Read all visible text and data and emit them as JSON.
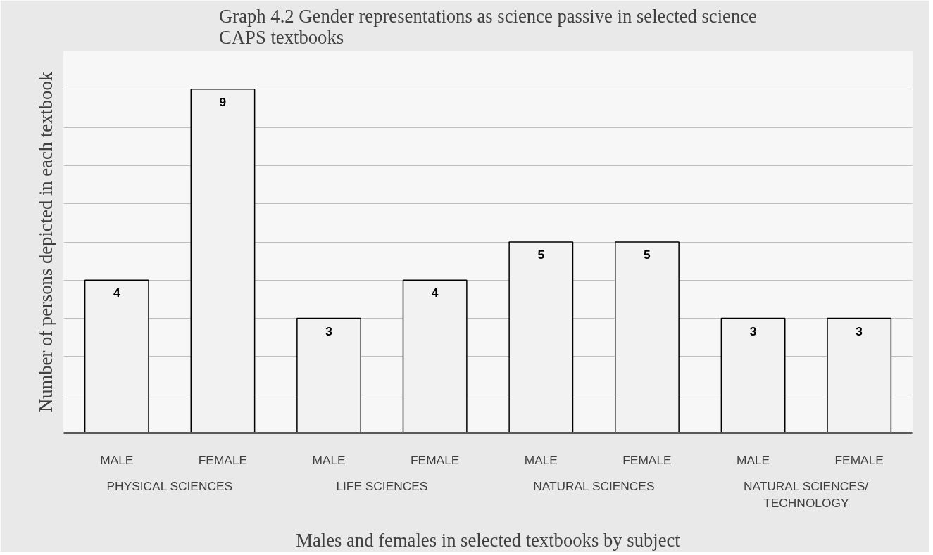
{
  "chart_data": {
    "type": "bar",
    "title": "Graph 4.2 Gender representations as science passive in selected science CAPS textbooks",
    "xlabel": "Males and females in selected textbooks by subject",
    "ylabel": "Number of persons depicted in each textbook",
    "categories": [
      "MALE",
      "FEMALE",
      "MALE",
      "FEMALE",
      "MALE",
      "FEMALE",
      "MALE",
      "FEMALE"
    ],
    "annotations": [
      "PHYSICAL SCIENCES",
      "LIFE SCIENCES",
      "NATURAL SCIENCES",
      "NATURAL SCIENCES/ TECHNOLOGY"
    ],
    "values": [
      4,
      9,
      3,
      4,
      5,
      5,
      3,
      3
    ],
    "color": "#f2f2f2",
    "ylim": [
      0,
      10
    ],
    "yticks": [
      {
        "value": 0,
        "label": null
      },
      {
        "value": 1,
        "label": null
      },
      {
        "value": 2,
        "label": null
      },
      {
        "value": 3,
        "label": null
      },
      {
        "value": 4,
        "label": null
      },
      {
        "value": 5,
        "label": null
      },
      {
        "value": 6,
        "label": null
      },
      {
        "value": 7,
        "label": null
      },
      {
        "value": 8,
        "label": null
      },
      {
        "value": 9,
        "label": null
      },
      {
        "value": 10,
        "label": null
      }
    ],
    "grid": "y",
    "data_labels": true,
    "tick_labels": "x"
  }
}
